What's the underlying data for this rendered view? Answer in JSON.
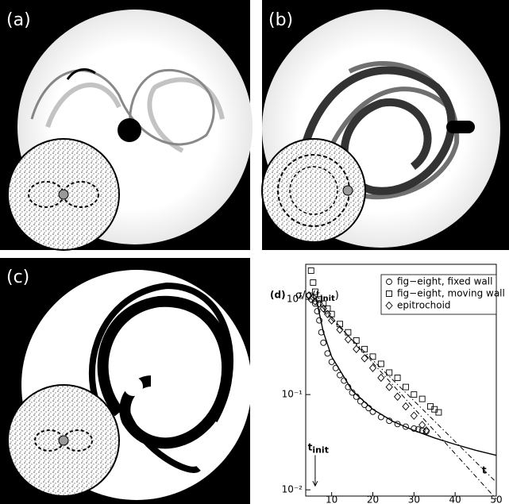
{
  "panels": [
    {
      "label": "(a)"
    },
    {
      "label": "(b)"
    },
    {
      "label": "(c)"
    }
  ],
  "chart_data": {
    "type": "scatter",
    "label": "(d)",
    "ylabel": {
      "main": "σ/σ(t",
      "sub": "init",
      "end": ")"
    },
    "xlim": [
      3.7,
      50
    ],
    "xticks": [
      10,
      20,
      30,
      40,
      50
    ],
    "ylim": [
      0.0086,
      2.33
    ],
    "log_y": true,
    "yticks": [
      {
        "value": 1,
        "label": "10⁰"
      },
      {
        "value": 0.1,
        "label": "10⁻¹"
      },
      {
        "value": 0.01,
        "label": "10⁻²"
      }
    ],
    "legend": "upper right",
    "series": [
      {
        "name": "fig−eight, fixed wall",
        "marker": "circle",
        "color": "#000000",
        "x": [
          6,
          6.5,
          7,
          7.5,
          8,
          9,
          10,
          11,
          12,
          13,
          14,
          15,
          16,
          17,
          18,
          19,
          20,
          22,
          24,
          26,
          28,
          30,
          31,
          32,
          33
        ],
        "values": [
          0.9,
          0.75,
          0.6,
          0.45,
          0.35,
          0.27,
          0.22,
          0.19,
          0.16,
          0.14,
          0.12,
          0.105,
          0.095,
          0.085,
          0.078,
          0.072,
          0.066,
          0.058,
          0.053,
          0.049,
          0.046,
          0.044,
          0.043,
          0.042,
          0.041
        ]
      },
      {
        "name": "fig−eight, moving wall",
        "marker": "square",
        "color": "#000000",
        "x": [
          5,
          5.5,
          6,
          7,
          8,
          9,
          10,
          12,
          14,
          16,
          18,
          20,
          22,
          24,
          26,
          28,
          30,
          32,
          34,
          35,
          36
        ],
        "values": [
          2.0,
          1.5,
          1.2,
          1.0,
          0.9,
          0.8,
          0.7,
          0.55,
          0.45,
          0.37,
          0.3,
          0.25,
          0.21,
          0.17,
          0.15,
          0.12,
          0.1,
          0.09,
          0.075,
          0.07,
          0.065
        ]
      },
      {
        "name": "epitrochoid",
        "marker": "diamond",
        "color": "#000000",
        "x": [
          4.5,
          5,
          5.5,
          6,
          7,
          8,
          9,
          10,
          12,
          14,
          16,
          18,
          20,
          22,
          24,
          26,
          28,
          30,
          32,
          33
        ],
        "values": [
          1.1,
          1.0,
          1.05,
          0.95,
          0.9,
          0.8,
          0.7,
          0.6,
          0.48,
          0.38,
          0.3,
          0.24,
          0.19,
          0.15,
          0.12,
          0.095,
          0.075,
          0.06,
          0.048,
          0.042
        ]
      }
    ],
    "lines": [
      {
        "style": "solid",
        "x": [
          6.5,
          8,
          10,
          15,
          20,
          25,
          30,
          35,
          40,
          45,
          50
        ],
        "values": [
          0.9,
          0.45,
          0.25,
          0.11,
          0.07,
          0.052,
          0.042,
          0.035,
          0.03,
          0.026,
          0.023
        ]
      },
      {
        "style": "dashdot",
        "x": [
          6,
          50
        ],
        "values": [
          1.0,
          0.008
        ]
      },
      {
        "style": "dashdot",
        "x": [
          8,
          50
        ],
        "values": [
          0.75,
          0.012
        ]
      }
    ],
    "annotations": [
      {
        "text": "t",
        "x": 46.5,
        "y": 0.016
      },
      {
        "text": "t",
        "sub": "init",
        "x": 4.2,
        "y": 0.028,
        "arrow_to": 0.011,
        "arrow_x": 6
      }
    ]
  }
}
